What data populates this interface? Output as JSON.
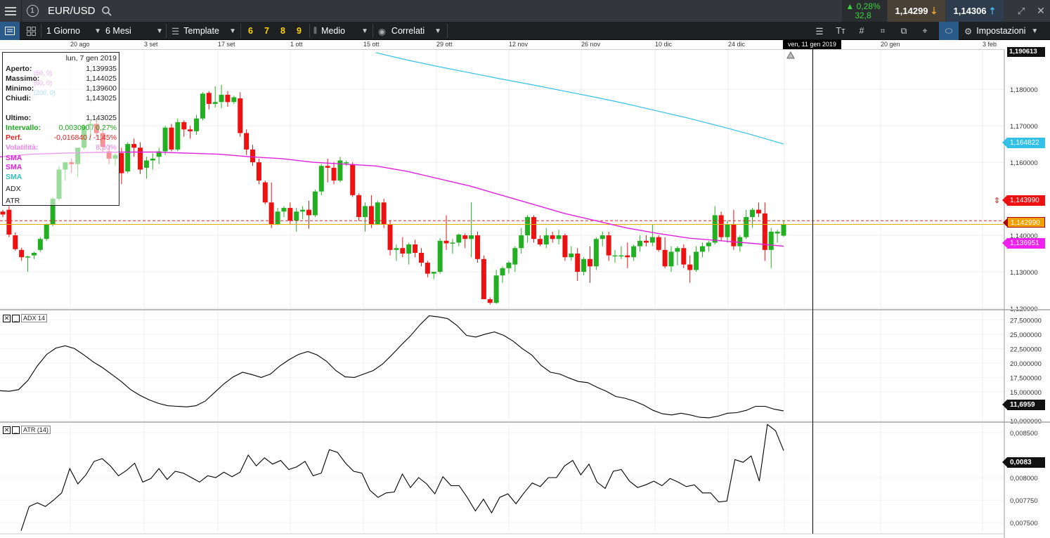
{
  "header": {
    "symbol": "EUR/USD",
    "change_pct": "▲ 0,28%",
    "change_pts": "32,8",
    "bid": "1,14299",
    "ask": "1,14306"
  },
  "toolbar": {
    "timeframe": "1 Giorno",
    "range": "6 Mesi",
    "template": "Template",
    "presets": [
      "6",
      "7",
      "8",
      "9"
    ],
    "price_type": "Medio",
    "correlati": "Correlati",
    "settings": "Impostazioni"
  },
  "date_axis": {
    "labels": [
      "20 ago",
      "3 set",
      "17 set",
      "1 ott",
      "15 ott",
      "29 ott",
      "12 nov",
      "26 nov",
      "10 dic",
      "24 dic",
      "20 gen",
      "3 feb"
    ],
    "cursor_date": "ven, 11 gen 2019"
  },
  "info_box": {
    "date": "lun, 7 gen 2019",
    "rows": [
      {
        "label": "Aperto:",
        "value": "1,139935"
      },
      {
        "label": "Massimo:",
        "value": "1,144025"
      },
      {
        "label": "Minimo:",
        "value": "1,139600"
      },
      {
        "label": "Chiudi:",
        "value": "1,143025"
      }
    ],
    "ultimo_label": "Ultimo:",
    "ultimo_value": "1,143025",
    "intervallo_label": "Intervallo:",
    "intervallo_value": "0,003090 / 0,27%",
    "perf_label": "Perf.",
    "perf_value": "-0,016840 / -1,45%",
    "volatilita_label": "Volatilità:",
    "volatilita_value": "8,30%",
    "indicators": [
      "SMA",
      "SMA",
      "SMA",
      "ADX",
      "ATR"
    ],
    "faded_params": [
      "(50, 0)",
      "(50, 0)",
      "(200, 0)"
    ]
  },
  "price_axis": {
    "ticks": [
      "1,180000",
      "1,170000",
      "1,160000",
      "1,140000",
      "1,130000",
      "1,120000"
    ],
    "top_value": "1,190613",
    "sma200_tag": "1,164822",
    "hline_tag": "1,143990",
    "last_tag": "1,142990",
    "sma50_tag": "1,136951"
  },
  "adx_panel": {
    "name": "ADX 14",
    "ticks": [
      "27,500000",
      "25,000000",
      "22,500000",
      "20,000000",
      "17,500000",
      "15,000000",
      "10,000000"
    ],
    "last_tag": "11,6959"
  },
  "atr_panel": {
    "name": "ATR (14)",
    "ticks": [
      "0,008500",
      "0,008000",
      "0,007750",
      "0,007500"
    ],
    "last_tag": "0,0083"
  },
  "colors": {
    "up": "#22b022",
    "down": "#ee1111",
    "sma50": "#e020e0",
    "sma200": "#30c0e8",
    "last_price": "#e0b000"
  },
  "chart_data": [
    {
      "type": "candlestick",
      "title": "EUR/USD",
      "ylim": [
        1.12,
        1.1906
      ],
      "candles_ohlc": [
        [
          1.1465,
          1.147,
          1.145,
          1.1457
        ],
        [
          1.147,
          1.148,
          1.1395,
          1.1402
        ],
        [
          1.14,
          1.1408,
          1.1358,
          1.1362
        ],
        [
          1.136,
          1.1366,
          1.133,
          1.134
        ],
        [
          1.134,
          1.1344,
          1.13,
          1.1342
        ],
        [
          1.1345,
          1.1355,
          1.1335,
          1.1352
        ],
        [
          1.136,
          1.1395,
          1.1355,
          1.139
        ],
        [
          1.139,
          1.1432,
          1.1385,
          1.143
        ],
        [
          1.143,
          1.1505,
          1.1425,
          1.15
        ],
        [
          1.15,
          1.159,
          1.1495,
          1.158
        ],
        [
          1.158,
          1.16,
          1.155,
          1.16
        ],
        [
          1.16,
          1.161,
          1.157,
          1.1595
        ],
        [
          1.1595,
          1.164,
          1.156,
          1.164
        ],
        [
          1.164,
          1.1705,
          1.1635,
          1.17
        ],
        [
          1.17,
          1.1712,
          1.166,
          1.1705
        ],
        [
          1.1705,
          1.172,
          1.167,
          1.168
        ],
        [
          1.168,
          1.169,
          1.1628,
          1.1642
        ],
        [
          1.163,
          1.1645,
          1.1595,
          1.161
        ],
        [
          1.161,
          1.1625,
          1.159,
          1.162
        ],
        [
          1.1625,
          1.164,
          1.154,
          1.157
        ],
        [
          1.1575,
          1.1655,
          1.157,
          1.165
        ],
        [
          1.165,
          1.1665,
          1.1615,
          1.164
        ],
        [
          1.164,
          1.1655,
          1.1568,
          1.158
        ],
        [
          1.1585,
          1.1615,
          1.1555,
          1.1605
        ],
        [
          1.1605,
          1.1625,
          1.158,
          1.161
        ],
        [
          1.1615,
          1.164,
          1.1595,
          1.163
        ],
        [
          1.163,
          1.17,
          1.162,
          1.1695
        ],
        [
          1.1695,
          1.1705,
          1.163,
          1.1635
        ],
        [
          1.1635,
          1.172,
          1.163,
          1.171
        ],
        [
          1.171,
          1.1715,
          1.167,
          1.169
        ],
        [
          1.169,
          1.17,
          1.1665,
          1.1685
        ],
        [
          1.1685,
          1.173,
          1.1675,
          1.172
        ],
        [
          1.172,
          1.1792,
          1.1715,
          1.1788
        ],
        [
          1.179,
          1.1795,
          1.1745,
          1.176
        ],
        [
          1.176,
          1.1808,
          1.175,
          1.1765
        ],
        [
          1.1765,
          1.1812,
          1.1748,
          1.1785
        ],
        [
          1.1785,
          1.1795,
          1.1752,
          1.1765
        ],
        [
          1.1765,
          1.1782,
          1.176,
          1.1778
        ],
        [
          1.1775,
          1.1792,
          1.167,
          1.168
        ],
        [
          1.168,
          1.169,
          1.162,
          1.1635
        ],
        [
          1.1635,
          1.1648,
          1.159,
          1.16
        ],
        [
          1.16,
          1.161,
          1.154,
          1.155
        ],
        [
          1.1545,
          1.155,
          1.1485,
          1.149
        ],
        [
          1.149,
          1.1545,
          1.142,
          1.143
        ],
        [
          1.143,
          1.1475,
          1.1428,
          1.1465
        ],
        [
          1.1465,
          1.148,
          1.145,
          1.1475
        ],
        [
          1.1475,
          1.149,
          1.143,
          1.144
        ],
        [
          1.144,
          1.1475,
          1.141,
          1.1465
        ],
        [
          1.1465,
          1.148,
          1.1445,
          1.147
        ],
        [
          1.147,
          1.1495,
          1.1418,
          1.1455
        ],
        [
          1.1455,
          1.1525,
          1.145,
          1.152
        ],
        [
          1.152,
          1.1595,
          1.151,
          1.159
        ],
        [
          1.159,
          1.161,
          1.1545,
          1.1585
        ],
        [
          1.1585,
          1.16,
          1.154,
          1.155
        ],
        [
          1.155,
          1.1615,
          1.1545,
          1.1605
        ],
        [
          1.16,
          1.1605,
          1.159,
          1.16
        ],
        [
          1.1595,
          1.16,
          1.1505,
          1.151
        ],
        [
          1.151,
          1.1515,
          1.144,
          1.145
        ],
        [
          1.145,
          1.149,
          1.141,
          1.148
        ],
        [
          1.148,
          1.151,
          1.142,
          1.143
        ],
        [
          1.143,
          1.1495,
          1.1428,
          1.149
        ],
        [
          1.149,
          1.15,
          1.142,
          1.143
        ],
        [
          1.143,
          1.144,
          1.1345,
          1.136
        ],
        [
          1.136,
          1.1375,
          1.133,
          1.1365
        ],
        [
          1.1365,
          1.1395,
          1.134,
          1.135
        ],
        [
          1.135,
          1.138,
          1.132,
          1.1375
        ],
        [
          1.1375,
          1.1388,
          1.134,
          1.1352
        ],
        [
          1.1352,
          1.1365,
          1.1315,
          1.1325
        ],
        [
          1.1325,
          1.133,
          1.1285,
          1.1295
        ],
        [
          1.1295,
          1.13,
          1.128,
          1.13
        ],
        [
          1.13,
          1.1392,
          1.1295,
          1.1385
        ],
        [
          1.1385,
          1.1455,
          1.136,
          1.1378
        ],
        [
          1.1378,
          1.139,
          1.135,
          1.138
        ],
        [
          1.138,
          1.1405,
          1.137,
          1.1402
        ],
        [
          1.14,
          1.1405,
          1.1365,
          1.139
        ],
        [
          1.139,
          1.149,
          1.134,
          1.14
        ],
        [
          1.14,
          1.141,
          1.1325,
          1.1335
        ],
        [
          1.1335,
          1.1345,
          1.125,
          1.1225
        ],
        [
          1.1225,
          1.123,
          1.121,
          1.1215
        ],
        [
          1.1215,
          1.1305,
          1.1212,
          1.129
        ],
        [
          1.129,
          1.1315,
          1.127,
          1.131
        ],
        [
          1.131,
          1.133,
          1.1295,
          1.1325
        ],
        [
          1.132,
          1.137,
          1.13,
          1.1365
        ],
        [
          1.1365,
          1.142,
          1.135,
          1.14
        ],
        [
          1.14,
          1.1455,
          1.138,
          1.145
        ],
        [
          1.145,
          1.1455,
          1.138,
          1.139
        ],
        [
          1.139,
          1.14,
          1.137,
          1.1375
        ],
        [
          1.1375,
          1.142,
          1.1365,
          1.14
        ],
        [
          1.14,
          1.141,
          1.138,
          1.139
        ],
        [
          1.139,
          1.1415,
          1.1375,
          1.14
        ],
        [
          1.14,
          1.1405,
          1.133,
          1.134
        ],
        [
          1.134,
          1.137,
          1.133,
          1.135
        ],
        [
          1.135,
          1.1365,
          1.1275,
          1.13
        ],
        [
          1.13,
          1.134,
          1.129,
          1.1335
        ],
        [
          1.1335,
          1.137,
          1.127,
          1.1315
        ],
        [
          1.1315,
          1.1395,
          1.1305,
          1.139
        ],
        [
          1.139,
          1.141,
          1.137,
          1.14
        ],
        [
          1.14,
          1.141,
          1.133,
          1.1345
        ],
        [
          1.1345,
          1.136,
          1.1325,
          1.1345
        ],
        [
          1.1345,
          1.137,
          1.1335,
          1.1345
        ],
        [
          1.1345,
          1.138,
          1.131,
          1.134
        ],
        [
          1.134,
          1.1375,
          1.133,
          1.137
        ],
        [
          1.137,
          1.14,
          1.1355,
          1.1385
        ],
        [
          1.1385,
          1.14,
          1.137,
          1.138
        ],
        [
          1.138,
          1.143,
          1.137,
          1.1395
        ],
        [
          1.1395,
          1.14,
          1.1355,
          1.136
        ],
        [
          1.136,
          1.1395,
          1.131,
          1.1315
        ],
        [
          1.1315,
          1.137,
          1.13,
          1.1355
        ],
        [
          1.1355,
          1.137,
          1.1318,
          1.1365
        ],
        [
          1.1365,
          1.1375,
          1.131,
          1.132
        ],
        [
          1.132,
          1.1345,
          1.127,
          1.1305
        ],
        [
          1.1305,
          1.137,
          1.13,
          1.1355
        ],
        [
          1.1355,
          1.138,
          1.134,
          1.137
        ],
        [
          1.137,
          1.1385,
          1.1355,
          1.138
        ],
        [
          1.138,
          1.148,
          1.1375,
          1.1455
        ],
        [
          1.1455,
          1.1465,
          1.1385,
          1.1395
        ],
        [
          1.1395,
          1.144,
          1.138,
          1.143
        ],
        [
          1.143,
          1.147,
          1.136,
          1.137
        ],
        [
          1.137,
          1.14,
          1.1355,
          1.1395
        ],
        [
          1.1395,
          1.147,
          1.139,
          1.145
        ],
        [
          1.145,
          1.1475,
          1.142,
          1.147
        ],
        [
          1.147,
          1.149,
          1.145,
          1.146
        ],
        [
          1.146,
          1.149,
          1.133,
          1.136
        ],
        [
          1.136,
          1.142,
          1.131,
          1.141
        ],
        [
          1.1405,
          1.1415,
          1.138,
          1.141
        ],
        [
          1.1399,
          1.144,
          1.1396,
          1.143
        ]
      ],
      "sma50": [
        1.1615,
        1.1622,
        1.1625,
        1.1627,
        1.1628,
        1.1628,
        1.1625,
        1.1622,
        1.1615,
        1.161,
        1.16,
        1.1595,
        1.159,
        1.1575,
        1.1555,
        1.1535,
        1.151,
        1.1485,
        1.146,
        1.144,
        1.142,
        1.1405,
        1.1392,
        1.1385,
        1.1378,
        1.137
      ],
      "sma200": [
        1.19,
        1.188,
        1.1862,
        1.1845,
        1.1828,
        1.1812,
        1.1795,
        1.1778,
        1.176,
        1.174,
        1.172,
        1.1698,
        1.1675,
        1.165
      ],
      "hlines": [
        1.14399,
        1.14299
      ]
    },
    {
      "type": "line",
      "title": "ADX 14",
      "ylim": [
        10,
        29
      ],
      "values": [
        15.2,
        15.1,
        15.4,
        17.0,
        19.5,
        21.5,
        22.6,
        23.0,
        22.5,
        21.4,
        20.2,
        19.2,
        18.0,
        16.8,
        15.4,
        14.4,
        13.6,
        13.0,
        12.6,
        12.5,
        12.4,
        12.6,
        13.4,
        14.9,
        16.4,
        17.6,
        18.4,
        18.0,
        17.5,
        18.1,
        19.5,
        20.6,
        21.5,
        22.0,
        21.4,
        20.3,
        18.7,
        17.6,
        17.5,
        18.1,
        18.7,
        19.8,
        21.4,
        23.1,
        24.7,
        26.6,
        28.2,
        28.0,
        27.7,
        26.5,
        24.8,
        24.5,
        25.0,
        25.4,
        24.8,
        23.8,
        22.5,
        21.4,
        19.6,
        18.4,
        18.1,
        17.4,
        16.8,
        16.6,
        15.8,
        15.1,
        14.2,
        13.9,
        13.4,
        12.7,
        11.8,
        11.2,
        11.0,
        11.3,
        11.0,
        10.6,
        10.5,
        10.8,
        11.3,
        11.4,
        11.8,
        12.5,
        12.5,
        12.0,
        11.6959
      ]
    },
    {
      "type": "line",
      "title": "ATR (14)",
      "ylim": [
        0.0074,
        0.0086
      ],
      "values": [
        0.00741,
        0.00768,
        0.00772,
        0.00768,
        0.00775,
        0.00783,
        0.0081,
        0.00793,
        0.00803,
        0.00818,
        0.00821,
        0.00813,
        0.00802,
        0.00808,
        0.00816,
        0.00795,
        0.00799,
        0.0081,
        0.00798,
        0.00807,
        0.00805,
        0.008,
        0.00795,
        0.00802,
        0.008,
        0.00806,
        0.00801,
        0.00806,
        0.00825,
        0.00813,
        0.00822,
        0.00815,
        0.00819,
        0.00809,
        0.00812,
        0.00818,
        0.00802,
        0.00805,
        0.00831,
        0.00828,
        0.00816,
        0.00807,
        0.00805,
        0.00786,
        0.00778,
        0.00783,
        0.00784,
        0.00804,
        0.00789,
        0.008,
        0.00793,
        0.00782,
        0.00801,
        0.00791,
        0.00791,
        0.00778,
        0.00763,
        0.00776,
        0.00761,
        0.00778,
        0.00782,
        0.00771,
        0.00783,
        0.00794,
        0.0079,
        0.008,
        0.008,
        0.00813,
        0.00819,
        0.00803,
        0.00815,
        0.00795,
        0.00788,
        0.00807,
        0.00809,
        0.00796,
        0.00789,
        0.00792,
        0.00796,
        0.00791,
        0.00799,
        0.00795,
        0.0079,
        0.00792,
        0.00783,
        0.00783,
        0.00773,
        0.00774,
        0.0082,
        0.00817,
        0.00824,
        0.00796,
        0.00859,
        0.00852,
        0.0083
      ]
    }
  ]
}
